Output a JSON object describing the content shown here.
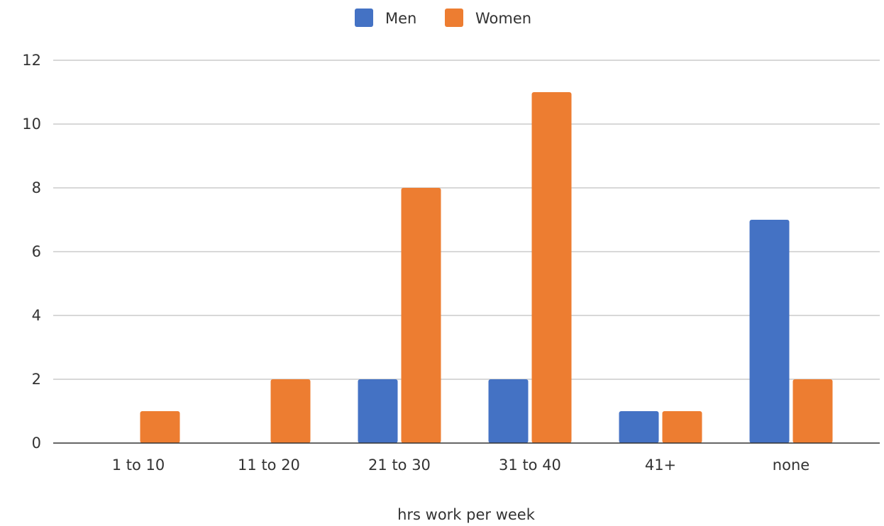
{
  "chart_data": {
    "type": "bar",
    "categories": [
      "1 to 10",
      "11 to 20",
      "21 to 30",
      "31 to 40",
      "41+",
      "none"
    ],
    "series": [
      {
        "name": "Men",
        "values": [
          0,
          0,
          2,
          2,
          1,
          7
        ],
        "color": "#4472c4"
      },
      {
        "name": "Women",
        "values": [
          1,
          2,
          8,
          11,
          1,
          2
        ],
        "color": "#ed7d31"
      }
    ],
    "xlabel": "hrs work per week",
    "ylabel": "",
    "ylim": [
      0,
      12
    ],
    "yticks": [
      0,
      2,
      4,
      6,
      8,
      10,
      12
    ],
    "grid": true,
    "legend_position": "top"
  }
}
